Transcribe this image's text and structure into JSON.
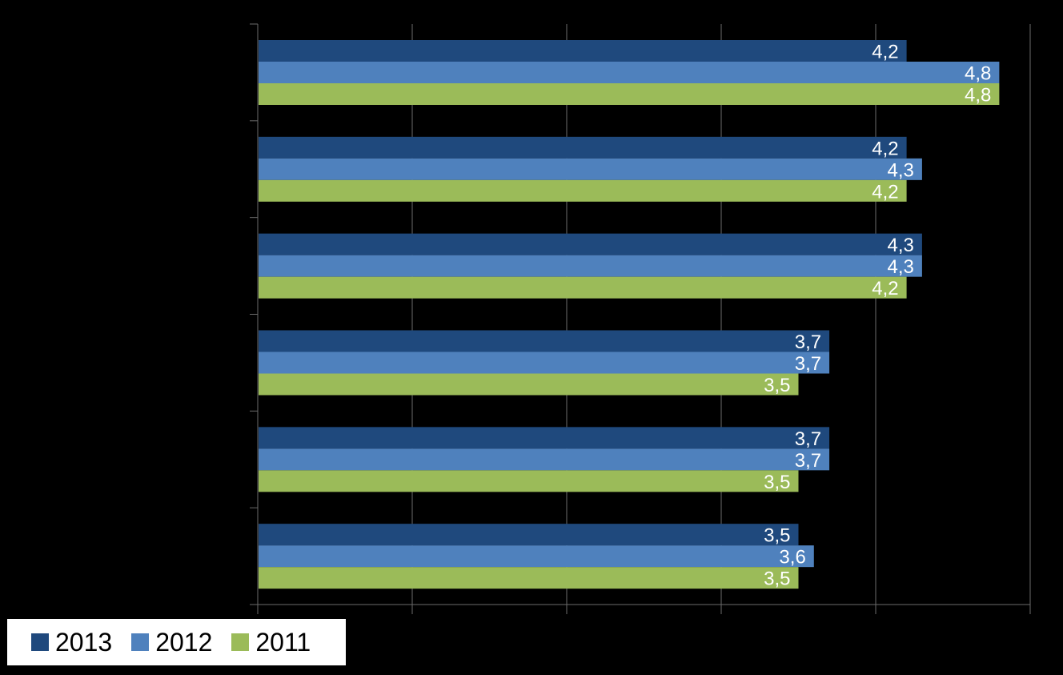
{
  "chart_data": {
    "type": "bar",
    "orientation": "horizontal",
    "categories": [
      "",
      "",
      "",
      "",
      "",
      ""
    ],
    "series": [
      {
        "name": "2013",
        "color": "#1f497d",
        "values": [
          4.2,
          4.2,
          4.3,
          3.7,
          3.7,
          3.5
        ]
      },
      {
        "name": "2012",
        "color": "#4f81bd",
        "values": [
          4.8,
          4.3,
          4.3,
          3.7,
          3.7,
          3.6
        ]
      },
      {
        "name": "2011",
        "color": "#9bbb59",
        "values": [
          4.8,
          4.2,
          4.2,
          3.5,
          3.5,
          3.5
        ]
      }
    ],
    "value_labels": [
      [
        "4,2",
        "4,2",
        "4,3",
        "3,7",
        "3,7",
        "3,5"
      ],
      [
        "4,8",
        "4,3",
        "4,3",
        "3,7",
        "3,7",
        "3,6"
      ],
      [
        "4,8",
        "4,2",
        "4,2",
        "3,5",
        "3,5",
        "3,5"
      ]
    ],
    "xlim": [
      0,
      5
    ],
    "x_tick_labels": [],
    "grid": "vertical lines",
    "legend_position": "bottom-left",
    "title": "",
    "xlabel": "",
    "ylabel": ""
  },
  "legend": {
    "items": [
      {
        "label": "2013",
        "color": "#1f497d"
      },
      {
        "label": "2012",
        "color": "#4f81bd"
      },
      {
        "label": "2011",
        "color": "#9bbb59"
      }
    ]
  }
}
